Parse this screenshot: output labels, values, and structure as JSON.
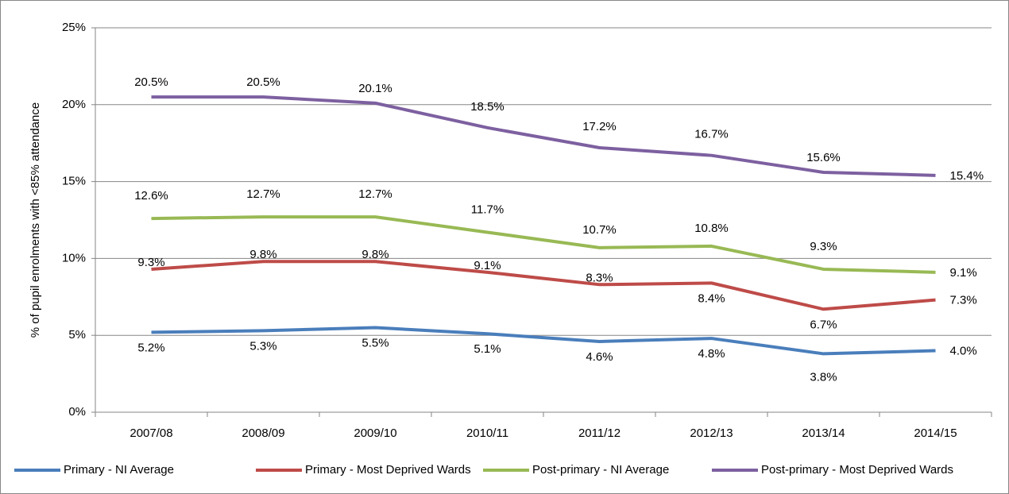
{
  "chart_data": {
    "type": "line",
    "y_label": "% of pupil enrolments with <85% attendance",
    "categories": [
      "2007/08",
      "2008/09",
      "2009/10",
      "2010/11",
      "2011/12",
      "2012/13",
      "2013/14",
      "2014/15"
    ],
    "ylim": [
      0,
      25
    ],
    "yticks": [
      {
        "value": 0,
        "label": "0%"
      },
      {
        "value": 5,
        "label": "5%"
      },
      {
        "value": 10,
        "label": "10%"
      },
      {
        "value": 15,
        "label": "15%"
      },
      {
        "value": 20,
        "label": "20%"
      },
      {
        "value": 25,
        "label": "25%"
      }
    ],
    "grid": true,
    "legend": "bottom",
    "series": [
      {
        "name": "Primary - NI Average",
        "color": "#4a7ebb",
        "values": [
          5.2,
          5.3,
          5.5,
          5.1,
          4.6,
          4.8,
          3.8,
          4.0
        ],
        "value_labels": [
          "5.2%",
          "5.3%",
          "5.5%",
          "5.1%",
          "4.6%",
          "4.8%",
          "3.8%",
          "4.0%"
        ]
      },
      {
        "name": "Primary - Most Deprived Wards",
        "color": "#be4b48",
        "values": [
          9.3,
          9.8,
          9.8,
          9.1,
          8.3,
          8.4,
          6.7,
          7.3
        ],
        "value_labels": [
          "9.3%",
          "9.8%",
          "9.8%",
          "9.1%",
          "8.3%",
          "8.4%",
          "6.7%",
          "7.3%"
        ]
      },
      {
        "name": "Post-primary - NI Average",
        "color": "#98b954",
        "values": [
          12.6,
          12.7,
          12.7,
          11.7,
          10.7,
          10.8,
          9.3,
          9.1
        ],
        "value_labels": [
          "12.6%",
          "12.7%",
          "12.7%",
          "11.7%",
          "10.7%",
          "10.8%",
          "9.3%",
          "9.1%"
        ]
      },
      {
        "name": "Post-primary - Most Deprived Wards",
        "color": "#7d60a0",
        "values": [
          20.5,
          20.5,
          20.1,
          18.5,
          17.2,
          16.7,
          15.6,
          15.4
        ],
        "value_labels": [
          "20.5%",
          "20.5%",
          "20.1%",
          "18.5%",
          "17.2%",
          "16.7%",
          "15.6%",
          "15.4%"
        ]
      }
    ]
  }
}
